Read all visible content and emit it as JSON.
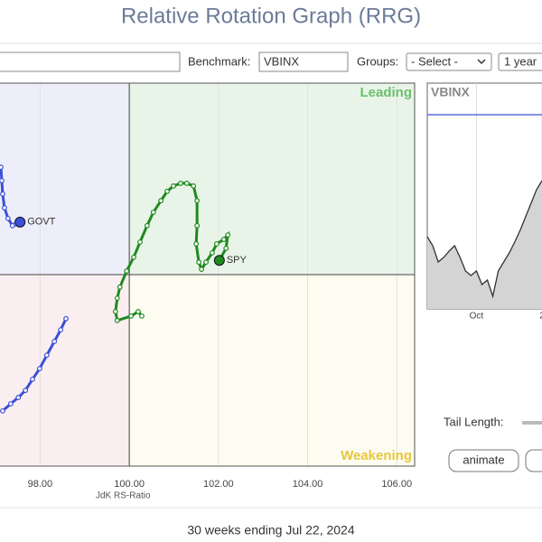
{
  "header": {
    "title": "Relative Rotation Graph (RRG)"
  },
  "toolbar": {
    "benchmark_label": "Benchmark:",
    "benchmark_value": "VBINX",
    "groups_label": "Groups:",
    "groups_value": "- Select -",
    "period_value": "1 year"
  },
  "chart_data": {
    "type": "scatter",
    "xlabel": "JdK RS-Ratio",
    "xlim": [
      97.1,
      106.4
    ],
    "ylim": [
      95.7,
      104.3
    ],
    "xticks": [
      {
        "value": 98,
        "label": "98.00"
      },
      {
        "value": 100,
        "label": "100.00"
      },
      {
        "value": 102,
        "label": "102.00"
      },
      {
        "value": 104,
        "label": "104.00"
      },
      {
        "value": 106,
        "label": "106.00"
      }
    ],
    "xcenter": 100,
    "ycenter": 100,
    "quadrants": {
      "top_right": "Leading",
      "bottom_right": "Weakening"
    },
    "quadrant_colors": {
      "top_left": "#eeeefa",
      "top_right": "#e9f4e9",
      "bottom_left": "#fbeef0",
      "bottom_right": "#fcfcf0"
    },
    "quadrant_label_colors": {
      "top_right": "#6cbf6c",
      "bottom_right": "#e8c640"
    },
    "series": [
      {
        "name": "GOVT",
        "color": "#3b4fd8",
        "x": [
          97.12,
          97.14,
          97.16,
          97.2,
          97.28,
          97.38,
          97.46,
          97.55
        ],
        "y": [
          102.41,
          102.11,
          101.81,
          101.5,
          101.26,
          101.1,
          101.14,
          101.18
        ]
      },
      {
        "name": "SPY",
        "color": "#1f8a1f",
        "x": [
          100.28,
          100.2,
          100.04,
          99.73,
          99.69,
          99.73,
          99.79,
          99.94,
          100.1,
          100.24,
          100.4,
          100.54,
          100.71,
          100.85,
          100.99,
          101.15,
          101.29,
          101.44,
          101.52,
          101.52,
          101.5,
          101.56,
          101.62,
          101.72,
          101.86,
          101.96,
          102.12,
          102.21,
          102.17,
          102.02
        ],
        "y": [
          99.07,
          99.17,
          99.07,
          98.97,
          99.17,
          99.47,
          99.72,
          100.08,
          100.39,
          100.73,
          101.1,
          101.4,
          101.66,
          101.87,
          101.99,
          102.05,
          102.05,
          101.99,
          101.66,
          101.1,
          100.69,
          100.28,
          100.12,
          100.28,
          100.49,
          100.69,
          100.79,
          100.89,
          100.59,
          100.32
        ]
      },
      {
        "color": "#3b4fd8",
        "x": [
          97.16,
          97.34,
          97.51,
          97.67,
          97.83,
          97.99,
          98.15,
          98.32,
          98.46,
          98.58
        ],
        "y": [
          96.94,
          97.1,
          97.24,
          97.4,
          97.65,
          97.89,
          98.19,
          98.5,
          98.76,
          99.01
        ]
      }
    ]
  },
  "mini_chart": {
    "title": "VBINX",
    "values": [
      32,
      28,
      20.8,
      22.8,
      25.6,
      28,
      22.8,
      16.8,
      14.8,
      16.8,
      10.8,
      12.8,
      5.6,
      16.8,
      20.8,
      24.8,
      29.6,
      34.8,
      40.8,
      46.8,
      52.8,
      56.8
    ],
    "ylim": [
      0,
      100
    ],
    "reference": 86,
    "xticks": [
      {
        "index": 9,
        "label": "Oct"
      },
      {
        "index": 21,
        "label": "2"
      }
    ]
  },
  "controls": {
    "tail_length_label": "Tail Length:",
    "animate": "animate"
  },
  "footer": "30 weeks ending Jul 22, 2024"
}
